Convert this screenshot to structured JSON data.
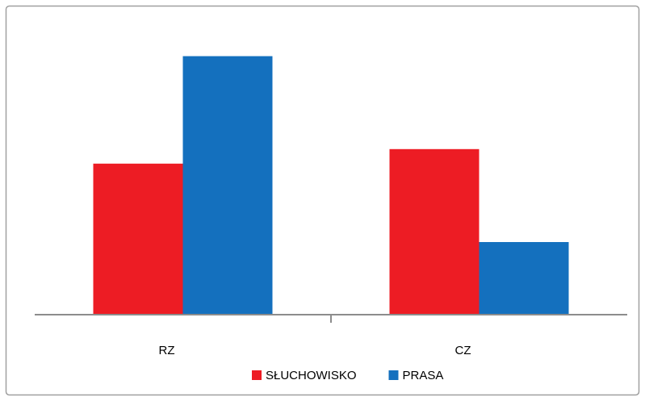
{
  "chart_data": {
    "type": "bar",
    "categories": [
      "RZ",
      "CZ"
    ],
    "series": [
      {
        "name": "SŁUCHOWISKO",
        "color": "#ed1c24",
        "values": [
          52,
          57
        ]
      },
      {
        "name": "PRASA",
        "color": "#1470be",
        "values": [
          89,
          25
        ]
      }
    ],
    "ylim": [
      0,
      100
    ],
    "legend": "bottom"
  }
}
